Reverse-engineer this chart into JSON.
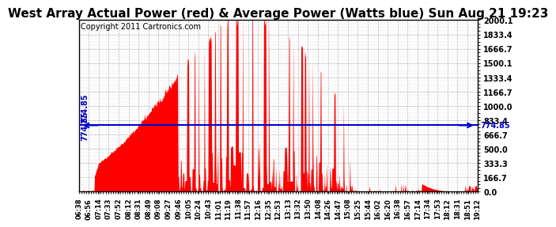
{
  "title": "West Array Actual Power (red) & Average Power (Watts blue) Sun Aug 21 19:23",
  "copyright": "Copyright 2011 Cartronics.com",
  "avg_power": 774.85,
  "y_max": 2000.1,
  "y_min": 0.0,
  "y_ticks": [
    0.0,
    166.7,
    333.3,
    500.0,
    666.7,
    833.4,
    1000.0,
    1166.7,
    1333.4,
    1500.1,
    1666.7,
    1833.4,
    2000.1
  ],
  "x_tick_labels": [
    "06:38",
    "06:56",
    "07:14",
    "07:33",
    "07:52",
    "08:12",
    "08:31",
    "08:49",
    "09:08",
    "09:27",
    "09:46",
    "10:05",
    "10:24",
    "10:43",
    "11:01",
    "11:19",
    "11:38",
    "11:57",
    "12:16",
    "12:35",
    "12:53",
    "13:13",
    "13:32",
    "13:50",
    "14:08",
    "14:26",
    "14:47",
    "15:08",
    "15:25",
    "15:44",
    "16:02",
    "16:20",
    "16:38",
    "16:57",
    "17:14",
    "17:34",
    "17:53",
    "18:12",
    "18:31",
    "18:51",
    "19:12"
  ],
  "fill_color": "#FF0000",
  "line_color": "#0000CC",
  "bg_color": "#FFFFFF",
  "grid_color": "#AAAAAA",
  "title_fontsize": 11,
  "copyright_fontsize": 7,
  "peak_max": 2050,
  "peak_t": 0.43,
  "sigma": 0.2
}
